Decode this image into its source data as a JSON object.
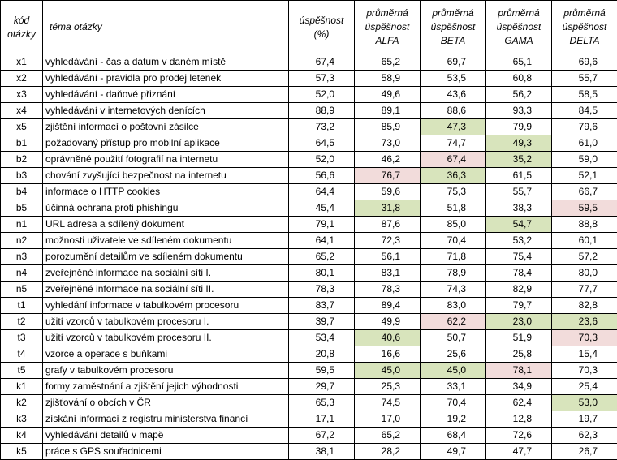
{
  "headers": {
    "code": [
      "kód",
      "otázky"
    ],
    "topic": [
      "téma otázky"
    ],
    "overall": [
      "úspěšnost",
      "(%)"
    ],
    "alfa": [
      "průměrná",
      "úspěšnost",
      "ALFA"
    ],
    "beta": [
      "průměrná",
      "úspěšnost",
      "BETA"
    ],
    "gama": [
      "průměrná",
      "úspěšnost",
      "GAMA"
    ],
    "delta": [
      "průměrná",
      "úspěšnost",
      "DELTA"
    ]
  },
  "colors": {
    "green": "#d8e4bc",
    "red": "#f2dcdb"
  },
  "rows": [
    {
      "code": "x1",
      "topic": "vyhledávání - čas a datum v daném místě",
      "values": [
        "67,4",
        "65,2",
        "69,7",
        "65,1",
        "69,6"
      ],
      "highlights": [
        "",
        "",
        "",
        "",
        ""
      ]
    },
    {
      "code": "x2",
      "topic": "vyhledávání - pravidla pro prodej letenek",
      "values": [
        "57,3",
        "58,9",
        "53,5",
        "60,8",
        "55,7"
      ],
      "highlights": [
        "",
        "",
        "",
        "",
        ""
      ]
    },
    {
      "code": "x3",
      "topic": "vyhledávání - daňové přiznání",
      "values": [
        "52,0",
        "49,6",
        "43,6",
        "56,2",
        "58,5"
      ],
      "highlights": [
        "",
        "",
        "",
        "",
        ""
      ]
    },
    {
      "code": "x4",
      "topic": "vyhledávání v internetových denících",
      "values": [
        "88,9",
        "89,1",
        "88,6",
        "93,3",
        "84,5"
      ],
      "highlights": [
        "",
        "",
        "",
        "",
        ""
      ]
    },
    {
      "code": "x5",
      "topic": "zjištění informací o poštovní zásilce",
      "values": [
        "73,2",
        "85,9",
        "47,3",
        "79,9",
        "79,6"
      ],
      "highlights": [
        "",
        "",
        "green",
        "",
        ""
      ]
    },
    {
      "code": "b1",
      "topic": "požadovaný přístup pro mobilní aplikace",
      "values": [
        "64,5",
        "73,0",
        "74,7",
        "49,3",
        "61,0"
      ],
      "highlights": [
        "",
        "",
        "",
        "green",
        ""
      ]
    },
    {
      "code": "b2",
      "topic": "oprávněné použití fotografií na internetu",
      "values": [
        "52,0",
        "46,2",
        "67,4",
        "35,2",
        "59,0"
      ],
      "highlights": [
        "",
        "",
        "red",
        "green",
        ""
      ]
    },
    {
      "code": "b3",
      "topic": "chování zvyšující bezpečnost na internetu",
      "values": [
        "56,6",
        "76,7",
        "36,3",
        "61,5",
        "52,1"
      ],
      "highlights": [
        "",
        "red",
        "green",
        "",
        ""
      ]
    },
    {
      "code": "b4",
      "topic": "informace o HTTP cookies",
      "values": [
        "64,4",
        "59,6",
        "75,3",
        "55,7",
        "66,7"
      ],
      "highlights": [
        "",
        "",
        "",
        "",
        ""
      ]
    },
    {
      "code": "b5",
      "topic": "účinná ochrana proti phishingu",
      "values": [
        "45,4",
        "31,8",
        "51,8",
        "38,3",
        "59,5"
      ],
      "highlights": [
        "",
        "green",
        "",
        "",
        "red"
      ]
    },
    {
      "code": "n1",
      "topic": "URL adresa a sdílený dokument",
      "values": [
        "79,1",
        "87,6",
        "85,0",
        "54,7",
        "88,8"
      ],
      "highlights": [
        "",
        "",
        "",
        "green",
        ""
      ]
    },
    {
      "code": "n2",
      "topic": "možnosti uživatele ve sdíleném dokumentu",
      "values": [
        "64,1",
        "72,3",
        "70,4",
        "53,2",
        "60,1"
      ],
      "highlights": [
        "",
        "",
        "",
        "",
        ""
      ]
    },
    {
      "code": "n3",
      "topic": "porozumění detailům ve sdíleném dokumentu",
      "values": [
        "65,2",
        "56,1",
        "71,8",
        "75,4",
        "57,2"
      ],
      "highlights": [
        "",
        "",
        "",
        "",
        ""
      ]
    },
    {
      "code": "n4",
      "topic": "zveřejněné informace na sociální síti I.",
      "values": [
        "80,1",
        "83,1",
        "78,9",
        "78,4",
        "80,0"
      ],
      "highlights": [
        "",
        "",
        "",
        "",
        ""
      ]
    },
    {
      "code": "n5",
      "topic": "zveřejněné informace na sociální síti II.",
      "values": [
        "78,3",
        "78,3",
        "74,3",
        "82,9",
        "77,7"
      ],
      "highlights": [
        "",
        "",
        "",
        "",
        ""
      ]
    },
    {
      "code": "t1",
      "topic": "vyhledání informace v tabulkovém procesoru",
      "values": [
        "83,7",
        "89,4",
        "83,0",
        "79,7",
        "82,8"
      ],
      "highlights": [
        "",
        "",
        "",
        "",
        ""
      ]
    },
    {
      "code": "t2",
      "topic": "užití vzorců v tabulkovém procesoru I.",
      "values": [
        "39,7",
        "49,9",
        "62,2",
        "23,0",
        "23,6"
      ],
      "highlights": [
        "",
        "",
        "red",
        "green",
        "green"
      ]
    },
    {
      "code": "t3",
      "topic": "užití vzorců v tabulkovém procesoru II.",
      "values": [
        "53,4",
        "40,6",
        "50,7",
        "51,9",
        "70,3"
      ],
      "highlights": [
        "",
        "green",
        "",
        "",
        "red"
      ]
    },
    {
      "code": "t4",
      "topic": "vzorce a operace s buňkami",
      "values": [
        "20,8",
        "16,6",
        "25,6",
        "25,8",
        "15,4"
      ],
      "highlights": [
        "",
        "",
        "",
        "",
        ""
      ]
    },
    {
      "code": "t5",
      "topic": "grafy v tabulkovém procesoru",
      "values": [
        "59,5",
        "45,0",
        "45,0",
        "78,1",
        "70,3"
      ],
      "highlights": [
        "",
        "green",
        "green",
        "red",
        ""
      ]
    },
    {
      "code": "k1",
      "topic": "formy zaměstnání a zjištění jejich výhodnosti",
      "values": [
        "29,7",
        "25,3",
        "33,1",
        "34,9",
        "25,4"
      ],
      "highlights": [
        "",
        "",
        "",
        "",
        ""
      ]
    },
    {
      "code": "k2",
      "topic": "zjišťování o obcích v ČR",
      "values": [
        "65,3",
        "74,5",
        "70,4",
        "62,4",
        "53,0"
      ],
      "highlights": [
        "",
        "",
        "",
        "",
        "green"
      ]
    },
    {
      "code": "k3",
      "topic": "získání informací z registru ministerstva financí",
      "values": [
        "17,1",
        "17,0",
        "19,2",
        "12,8",
        "19,7"
      ],
      "highlights": [
        "",
        "",
        "",
        "",
        ""
      ]
    },
    {
      "code": "k4",
      "topic": "vyhledávání detailů v mapě",
      "values": [
        "67,2",
        "65,2",
        "68,4",
        "72,6",
        "62,3"
      ],
      "highlights": [
        "",
        "",
        "",
        "",
        ""
      ]
    },
    {
      "code": "k5",
      "topic": "práce s GPS souřadnicemi",
      "values": [
        "38,1",
        "28,2",
        "49,7",
        "47,7",
        "26,7"
      ],
      "highlights": [
        "",
        "",
        "",
        "",
        ""
      ]
    }
  ]
}
